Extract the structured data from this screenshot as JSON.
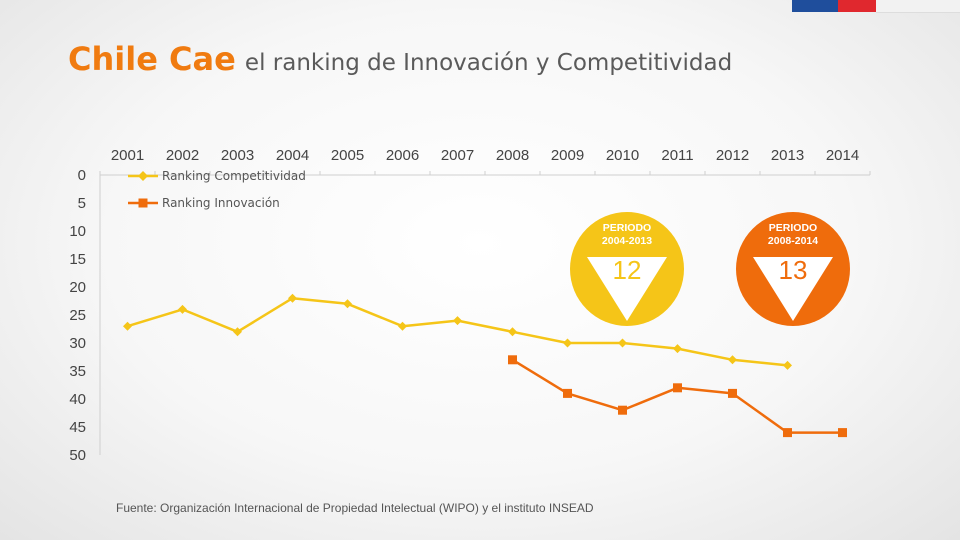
{
  "title": {
    "strong": "Chile Cae",
    "rest": "el ranking de Innovación y Competitividad"
  },
  "source": "Fuente: Organización Internacional de Propiedad Intelectual (WIPO) y el instituto INSEAD",
  "colors": {
    "competitividad": "#f5c518",
    "innovacion": "#ef6c0c",
    "title_accent": "#f07b10",
    "flag_blue": "#1f4e9c",
    "flag_red": "#e0282e"
  },
  "badges": [
    {
      "label_line1": "PERIODO",
      "label_line2": "2004-2013",
      "value": "12",
      "color": "#f5c518",
      "icon": "down-arrow-icon"
    },
    {
      "label_line1": "PERIODO",
      "label_line2": "2008-2014",
      "value": "13",
      "color": "#ef6c0c",
      "icon": "down-arrow-icon"
    }
  ],
  "chart_data": {
    "type": "line",
    "x": [
      2001,
      2002,
      2003,
      2004,
      2005,
      2006,
      2007,
      2008,
      2009,
      2010,
      2011,
      2012,
      2013,
      2014
    ],
    "x_tick_labels": [
      "2001",
      "2002",
      "2003",
      "2004",
      "2005",
      "2006",
      "2007",
      "2008",
      "2009",
      "2010",
      "2011",
      "2012",
      "2013",
      "2014"
    ],
    "y_tick_labels": [
      "0",
      "5",
      "10",
      "15",
      "20",
      "25",
      "30",
      "35",
      "40",
      "45",
      "50"
    ],
    "ylim": [
      0,
      50
    ],
    "y_reversed": true,
    "x_axis_position": "top",
    "legend_position": "top-left",
    "grid": false,
    "series": [
      {
        "name": "Ranking Competitividad",
        "marker": "diamond",
        "values": [
          27,
          24,
          28,
          22,
          23,
          27,
          26,
          28,
          30,
          30,
          31,
          33,
          34,
          null
        ]
      },
      {
        "name": "Ranking Innovación",
        "marker": "square",
        "values": [
          null,
          null,
          null,
          null,
          null,
          null,
          null,
          33,
          39,
          42,
          38,
          39,
          46,
          46
        ]
      }
    ]
  }
}
